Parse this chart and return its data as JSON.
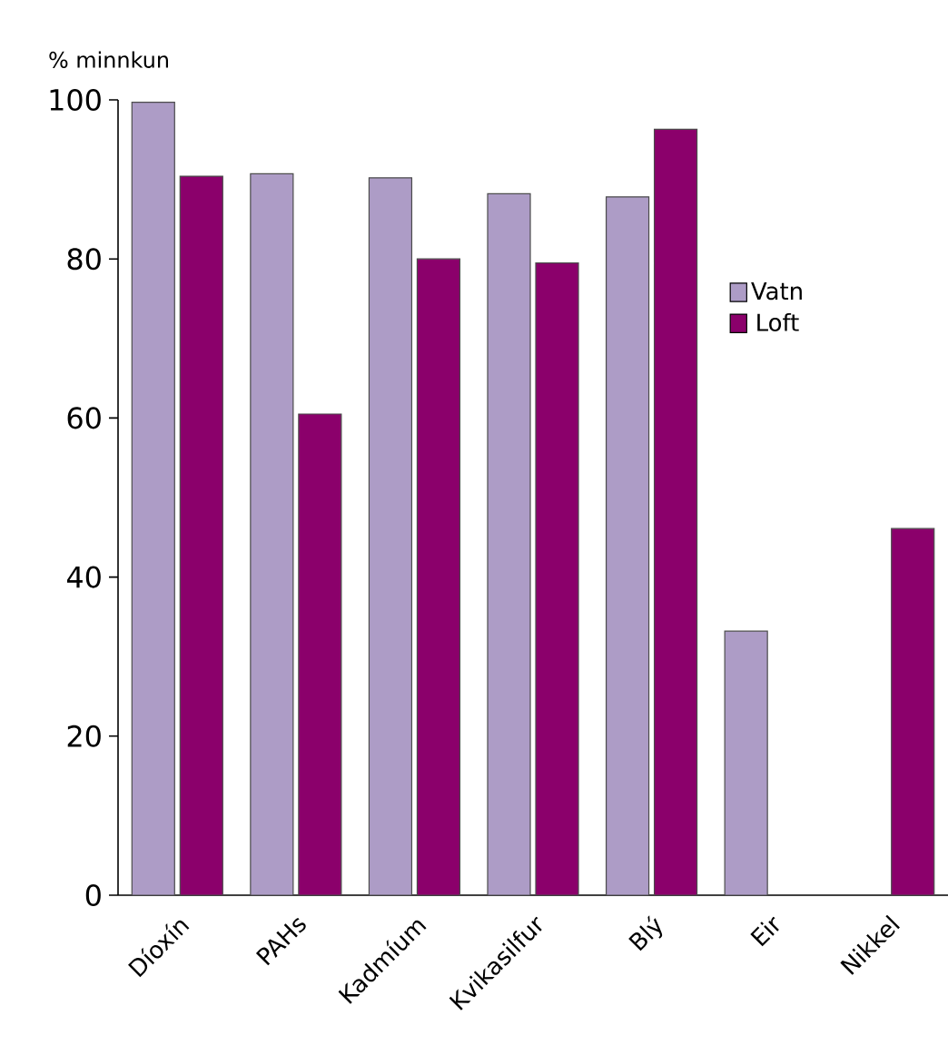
{
  "chart_data": {
    "type": "bar",
    "ylabel": "% minnkun",
    "categories": [
      "Díoxín",
      "PAHs",
      "Kadmíum",
      "Kvikasilfur",
      "Blý",
      "Eir",
      "Nikkel"
    ],
    "series": [
      {
        "name": "Vatn",
        "color": "#ad9cc6",
        "values": [
          99.7,
          90.7,
          90.2,
          88.2,
          87.8,
          33.2,
          null
        ]
      },
      {
        "name": "Loft",
        "color": "#8b006b",
        "values": [
          90.4,
          60.5,
          80.0,
          79.5,
          96.3,
          null,
          46.1
        ]
      }
    ],
    "ylim": [
      0,
      100
    ],
    "yticks": [
      0,
      20,
      40,
      60,
      80,
      100
    ],
    "legend": "right",
    "grid": false
  }
}
